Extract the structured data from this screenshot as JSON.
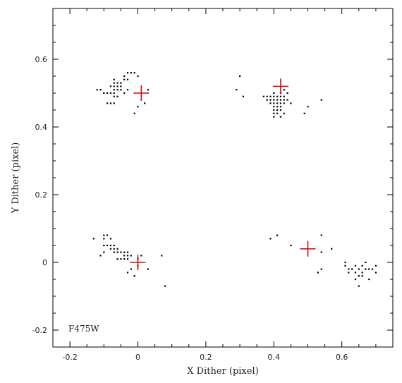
{
  "chart_data": {
    "type": "scatter",
    "title": "",
    "xlabel": "X Dither (pixel)",
    "ylabel": "Y Dither (pixel)",
    "xlim": [
      -0.25,
      0.75
    ],
    "ylim": [
      -0.25,
      0.75
    ],
    "x_ticks": [
      -0.2,
      0,
      0.2,
      0.4,
      0.6
    ],
    "x_tick_labels": [
      "-0.2",
      "0",
      "0.2",
      "0.4",
      "0.6"
    ],
    "y_ticks": [
      -0.2,
      0,
      0.2,
      0.4,
      0.6
    ],
    "y_tick_labels": [
      "-0.2",
      "0",
      "0.2",
      "0.4",
      "0.6"
    ],
    "x_minor_step": 0.05,
    "y_minor_step": 0.05,
    "grid": false,
    "annotation": "F475W",
    "colors": {
      "points": "#000000",
      "targets": "#cc1111",
      "axes": "#000000"
    },
    "series": [
      {
        "marker": "dot",
        "points": [
          [
            -0.12,
            0.51
          ],
          [
            -0.11,
            0.51
          ],
          [
            -0.1,
            0.5
          ],
          [
            -0.09,
            0.5
          ],
          [
            -0.08,
            0.5
          ],
          [
            -0.07,
            0.5
          ],
          [
            -0.09,
            0.47
          ],
          [
            -0.08,
            0.47
          ],
          [
            -0.07,
            0.47
          ],
          [
            -0.08,
            0.52
          ],
          [
            -0.07,
            0.52
          ],
          [
            -0.06,
            0.52
          ],
          [
            -0.05,
            0.52
          ],
          [
            -0.07,
            0.53
          ],
          [
            -0.06,
            0.53
          ],
          [
            -0.05,
            0.53
          ],
          [
            -0.07,
            0.51
          ],
          [
            -0.06,
            0.51
          ],
          [
            -0.05,
            0.51
          ],
          [
            -0.07,
            0.49
          ],
          [
            -0.06,
            0.49
          ],
          [
            -0.04,
            0.5
          ],
          [
            -0.03,
            0.51
          ],
          [
            -0.04,
            0.54
          ],
          [
            -0.03,
            0.54
          ],
          [
            -0.04,
            0.55
          ],
          [
            -0.03,
            0.56
          ],
          [
            -0.02,
            0.56
          ],
          [
            -0.01,
            0.56
          ],
          [
            -0.07,
            0.54
          ],
          [
            0.0,
            0.55
          ],
          [
            0.0,
            0.46
          ],
          [
            0.02,
            0.47
          ],
          [
            0.03,
            0.51
          ],
          [
            -0.01,
            0.44
          ],
          [
            0.29,
            0.51
          ],
          [
            0.3,
            0.55
          ],
          [
            0.31,
            0.49
          ],
          [
            0.37,
            0.49
          ],
          [
            0.38,
            0.49
          ],
          [
            0.39,
            0.49
          ],
          [
            0.4,
            0.49
          ],
          [
            0.41,
            0.49
          ],
          [
            0.42,
            0.49
          ],
          [
            0.43,
            0.49
          ],
          [
            0.38,
            0.48
          ],
          [
            0.39,
            0.48
          ],
          [
            0.4,
            0.48
          ],
          [
            0.41,
            0.48
          ],
          [
            0.42,
            0.48
          ],
          [
            0.43,
            0.48
          ],
          [
            0.44,
            0.48
          ],
          [
            0.39,
            0.47
          ],
          [
            0.4,
            0.47
          ],
          [
            0.41,
            0.47
          ],
          [
            0.42,
            0.47
          ],
          [
            0.43,
            0.47
          ],
          [
            0.45,
            0.47
          ],
          [
            0.4,
            0.46
          ],
          [
            0.41,
            0.46
          ],
          [
            0.42,
            0.46
          ],
          [
            0.4,
            0.45
          ],
          [
            0.41,
            0.45
          ],
          [
            0.42,
            0.45
          ],
          [
            0.4,
            0.44
          ],
          [
            0.41,
            0.44
          ],
          [
            0.43,
            0.44
          ],
          [
            0.4,
            0.43
          ],
          [
            0.42,
            0.43
          ],
          [
            0.4,
            0.5
          ],
          [
            0.42,
            0.5
          ],
          [
            0.43,
            0.51
          ],
          [
            0.44,
            0.5
          ],
          [
            0.49,
            0.44
          ],
          [
            0.5,
            0.46
          ],
          [
            0.54,
            0.48
          ],
          [
            -0.13,
            0.07
          ],
          [
            -0.1,
            0.08
          ],
          [
            -0.09,
            0.08
          ],
          [
            -0.1,
            0.07
          ],
          [
            -0.08,
            0.07
          ],
          [
            -0.1,
            0.05
          ],
          [
            -0.09,
            0.05
          ],
          [
            -0.08,
            0.05
          ],
          [
            -0.07,
            0.05
          ],
          [
            -0.08,
            0.04
          ],
          [
            -0.07,
            0.04
          ],
          [
            -0.06,
            0.04
          ],
          [
            -0.1,
            0.03
          ],
          [
            -0.07,
            0.03
          ],
          [
            -0.06,
            0.03
          ],
          [
            -0.05,
            0.03
          ],
          [
            -0.04,
            0.03
          ],
          [
            -0.03,
            0.03
          ],
          [
            -0.04,
            0.02
          ],
          [
            -0.03,
            0.02
          ],
          [
            -0.02,
            0.02
          ],
          [
            -0.11,
            0.02
          ],
          [
            -0.06,
            0.01
          ],
          [
            -0.05,
            0.01
          ],
          [
            -0.04,
            0.01
          ],
          [
            -0.03,
            0.01
          ],
          [
            0.0,
            0.01
          ],
          [
            0.01,
            0.02
          ],
          [
            0.0,
            -0.01
          ],
          [
            -0.02,
            -0.02
          ],
          [
            -0.03,
            -0.03
          ],
          [
            -0.01,
            -0.04
          ],
          [
            0.03,
            -0.02
          ],
          [
            0.07,
            0.02
          ],
          [
            0.08,
            -0.07
          ],
          [
            0.39,
            0.07
          ],
          [
            0.41,
            0.08
          ],
          [
            0.45,
            0.05
          ],
          [
            0.54,
            0.08
          ],
          [
            0.54,
            0.03
          ],
          [
            0.57,
            0.04
          ],
          [
            0.53,
            -0.03
          ],
          [
            0.54,
            -0.02
          ],
          [
            0.61,
            0.0
          ],
          [
            0.61,
            -0.01
          ],
          [
            0.62,
            -0.02
          ],
          [
            0.63,
            -0.02
          ],
          [
            0.64,
            -0.01
          ],
          [
            0.64,
            -0.03
          ],
          [
            0.65,
            -0.02
          ],
          [
            0.65,
            -0.04
          ],
          [
            0.66,
            -0.01
          ],
          [
            0.66,
            -0.03
          ],
          [
            0.67,
            -0.02
          ],
          [
            0.67,
            0.0
          ],
          [
            0.68,
            -0.02
          ],
          [
            0.68,
            -0.05
          ],
          [
            0.69,
            -0.02
          ],
          [
            0.7,
            -0.01
          ],
          [
            0.7,
            -0.03
          ],
          [
            0.62,
            -0.03
          ],
          [
            0.64,
            -0.05
          ],
          [
            0.65,
            -0.07
          ],
          [
            0.66,
            -0.04
          ]
        ]
      },
      {
        "marker": "cross",
        "points": [
          [
            0.01,
            0.5
          ],
          [
            0.42,
            0.52
          ],
          [
            0.0,
            0.0
          ],
          [
            0.5,
            0.04
          ]
        ]
      }
    ]
  }
}
